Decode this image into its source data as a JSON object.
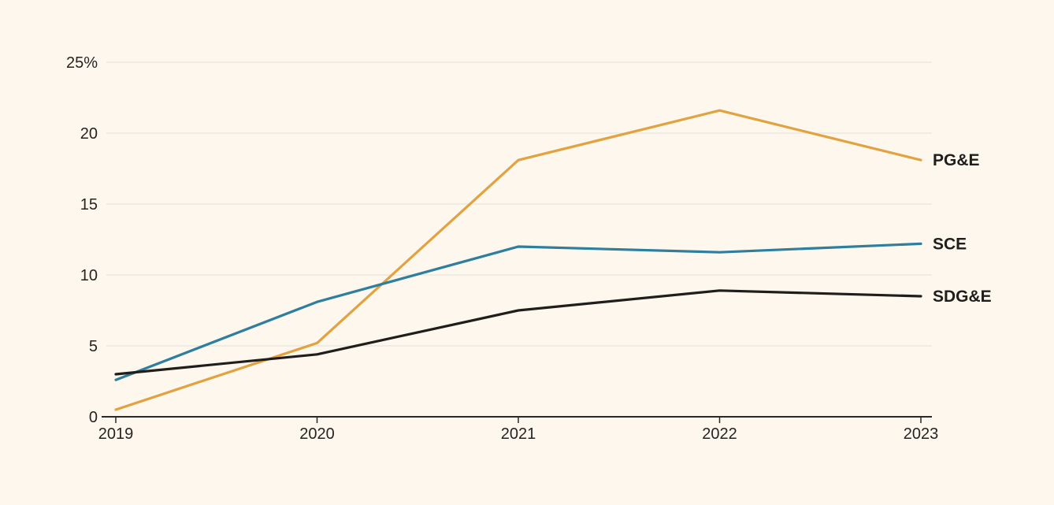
{
  "chart_data": {
    "type": "line",
    "x": [
      "2019",
      "2020",
      "2021",
      "2022",
      "2023"
    ],
    "series": [
      {
        "name": "PG&E",
        "color": "#E2A23F",
        "values": [
          0.5,
          5.2,
          18.1,
          21.6,
          18.1
        ]
      },
      {
        "name": "SCE",
        "color": "#2E7E9E",
        "values": [
          2.6,
          8.1,
          12.0,
          11.6,
          12.2
        ]
      },
      {
        "name": "SDG&E",
        "color": "#1F1E1C",
        "values": [
          3.0,
          4.4,
          7.5,
          8.9,
          8.5
        ]
      }
    ],
    "title": "",
    "xlabel": "",
    "ylabel": "",
    "ylim": [
      0,
      25
    ],
    "yticks": [
      0,
      5,
      10,
      15,
      20,
      25
    ],
    "ytick_labels": [
      "0",
      "5",
      "10",
      "15",
      "20",
      "25%"
    ],
    "grid": true,
    "legend_position": "right-of-line-ends"
  },
  "colors": {
    "background": "#FDF7ED",
    "gridline": "#E7E5DE",
    "axis": "#2B2926",
    "text": "#262320"
  }
}
